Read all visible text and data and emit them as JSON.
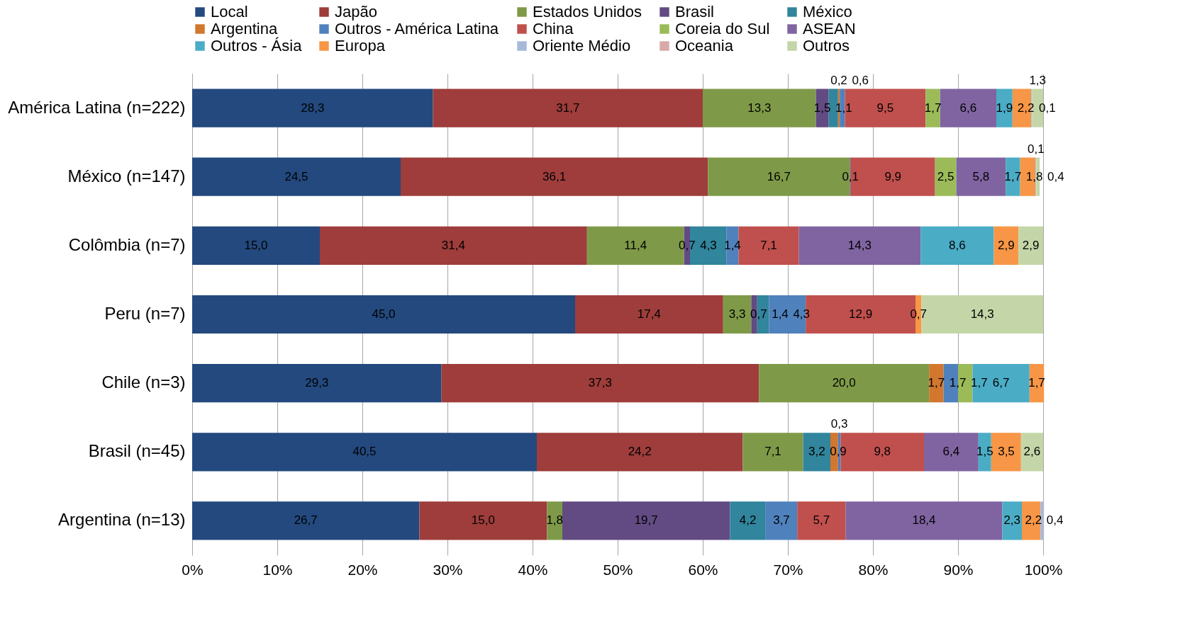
{
  "chart_data": {
    "type": "bar",
    "orientation": "horizontal",
    "stacked": true,
    "grid": "x",
    "legend": "top",
    "categories": [
      "América Latina (n=222)",
      "México (n=147)",
      "Colômbia (n=7)",
      "Peru (n=7)",
      "Chile (n=3)",
      "Brasil (n=45)",
      "Argentina (n=13)"
    ],
    "xlim": [
      0,
      100
    ],
    "xticks": [
      {
        "value": 0,
        "label": "0%"
      },
      {
        "value": 10,
        "label": "10%"
      },
      {
        "value": 20,
        "label": "20%"
      },
      {
        "value": 30,
        "label": "30%"
      },
      {
        "value": 40,
        "label": "40%"
      },
      {
        "value": 50,
        "label": "50%"
      },
      {
        "value": 60,
        "label": "60%"
      },
      {
        "value": 70,
        "label": "70%"
      },
      {
        "value": 80,
        "label": "80%"
      },
      {
        "value": 90,
        "label": "90%"
      },
      {
        "value": 100,
        "label": "100%"
      }
    ],
    "series": [
      {
        "name": "Local",
        "color": "#23497e",
        "values": [
          28.3,
          24.5,
          15.0,
          45.0,
          29.3,
          40.5,
          26.7
        ],
        "value_labels": [
          "28,3",
          "24,5",
          "15,0",
          "45,0",
          "29,3",
          "40,5",
          "26,7"
        ]
      },
      {
        "name": "Japão",
        "color": "#9e3d3b",
        "values": [
          31.7,
          36.1,
          31.4,
          17.4,
          37.3,
          24.2,
          15.0
        ],
        "value_labels": [
          "31,7",
          "36,1",
          "31,4",
          "17,4",
          "37,3",
          "24,2",
          "15,0"
        ]
      },
      {
        "name": "Estados Unidos",
        "color": "#7e9a48",
        "values": [
          13.3,
          16.7,
          11.4,
          3.3,
          20.0,
          7.1,
          1.8
        ],
        "value_labels": [
          "13,3",
          "16,7",
          "11,4",
          "3,3",
          "20,0",
          "7,1",
          "1,8"
        ]
      },
      {
        "name": "Brasil",
        "color": "#624b82",
        "values": [
          1.5,
          0.1,
          0.7,
          0.7,
          null,
          null,
          19.7
        ],
        "value_labels": [
          "1,5",
          "0,1",
          "0,7",
          "0,7",
          null,
          null,
          "19,7"
        ]
      },
      {
        "name": "México",
        "color": "#31859c",
        "values": [
          1.1,
          null,
          4.3,
          1.4,
          null,
          3.2,
          4.2
        ],
        "value_labels": [
          "1,1",
          null,
          "4,3",
          "1,4",
          null,
          "3,2",
          "4,2"
        ]
      },
      {
        "name": "Argentina",
        "color": "#d2772e",
        "values": [
          0.2,
          null,
          null,
          null,
          1.7,
          0.9,
          null
        ],
        "value_labels": [
          "0,2",
          null,
          null,
          null,
          "1,7",
          "0,9",
          null
        ]
      },
      {
        "name": "Outros - América Latina",
        "color": "#4f81bd",
        "values": [
          0.6,
          null,
          1.4,
          4.3,
          1.7,
          0.3,
          3.7
        ],
        "value_labels": [
          "0,6",
          null,
          "1,4",
          "4,3",
          "1,7",
          "0,3",
          "3,7"
        ]
      },
      {
        "name": "China",
        "color": "#c0504d",
        "values": [
          9.5,
          9.9,
          7.1,
          12.9,
          null,
          9.8,
          5.7
        ],
        "value_labels": [
          "9,5",
          "9,9",
          "7,1",
          "12,9",
          null,
          "9,8",
          "5,7"
        ]
      },
      {
        "name": "Coreia do Sul",
        "color": "#9bbb59",
        "values": [
          1.7,
          2.5,
          null,
          null,
          1.7,
          null,
          null
        ],
        "value_labels": [
          "1,7",
          "2,5",
          null,
          null,
          "1,7",
          null,
          null
        ]
      },
      {
        "name": "ASEAN",
        "color": "#8064a2",
        "values": [
          6.6,
          5.8,
          14.3,
          null,
          null,
          6.4,
          18.4
        ],
        "value_labels": [
          "6,6",
          "5,8",
          "14,3",
          null,
          null,
          "6,4",
          "18,4"
        ]
      },
      {
        "name": "Outros - Ásia",
        "color": "#4bacc6",
        "values": [
          1.9,
          1.7,
          8.6,
          null,
          6.7,
          1.5,
          2.3
        ],
        "value_labels": [
          "1,9",
          "1,7",
          "8,6",
          null,
          "6,7",
          "1,5",
          "2,3"
        ]
      },
      {
        "name": "Europa",
        "color": "#f79646",
        "values": [
          2.2,
          1.8,
          2.9,
          0.7,
          1.7,
          3.5,
          2.2
        ],
        "value_labels": [
          "2,2",
          "1,8",
          "2,9",
          "0,7",
          "1,7",
          "3,5",
          "2,2"
        ]
      },
      {
        "name": "Oriente Médio",
        "color": "#a6b9d8",
        "values": [
          0.1,
          0.1,
          null,
          null,
          null,
          null,
          0.4
        ],
        "value_labels": [
          "0,1",
          "0,1",
          null,
          null,
          null,
          null,
          "0,4"
        ]
      },
      {
        "name": "Oceania",
        "color": "#d9a9a9",
        "values": [
          null,
          null,
          null,
          null,
          null,
          null,
          null
        ]
      },
      {
        "name": "Outros",
        "color": "#c4d6a8",
        "values": [
          1.3,
          0.4,
          2.9,
          14.3,
          null,
          2.6,
          null
        ],
        "value_labels": [
          "1,3",
          "0,4",
          "2,9",
          "14,3",
          null,
          "2,6",
          null
        ]
      }
    ]
  }
}
